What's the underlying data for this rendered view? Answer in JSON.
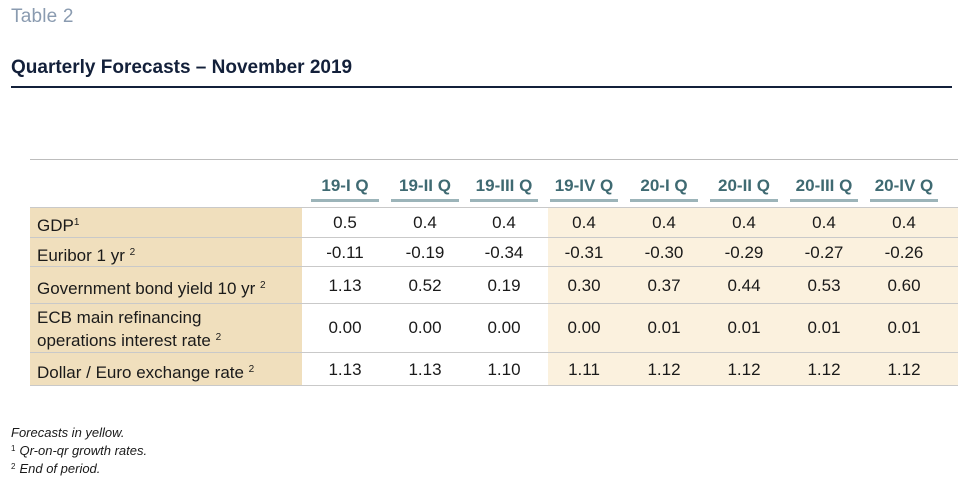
{
  "table_label": "Table 2",
  "title": "Quarterly Forecasts – November 2019",
  "columns": [
    "19-I Q",
    "19-II Q",
    "19-III Q",
    "19-IV Q",
    "20-I Q",
    "20-II Q",
    "20-III Q",
    "20-IV Q"
  ],
  "rows": [
    {
      "label": "GDP",
      "sup": "1",
      "values": [
        "0.5",
        "0.4",
        "0.4",
        "0.4",
        "0.4",
        "0.4",
        "0.4",
        "0.4"
      ]
    },
    {
      "label": "Euribor 1 yr ",
      "sup": "2",
      "values": [
        "-0.11",
        "-0.19",
        "-0.34",
        "-0.31",
        "-0.30",
        "-0.29",
        "-0.27",
        "-0.26"
      ]
    },
    {
      "label": "Government bond yield 10 yr ",
      "sup": "2",
      "values": [
        "1.13",
        "0.52",
        "0.19",
        "0.30",
        "0.37",
        "0.44",
        "0.53",
        "0.60"
      ]
    },
    {
      "label_line1": "ECB main refinancing",
      "label": "operations interest rate ",
      "sup": "2",
      "values": [
        "0.00",
        "0.00",
        "0.00",
        "0.00",
        "0.01",
        "0.01",
        "0.01",
        "0.01"
      ]
    },
    {
      "label": "Dollar / Euro exchange rate ",
      "sup": "2",
      "values": [
        "1.13",
        "1.13",
        "1.10",
        "1.11",
        "1.12",
        "1.12",
        "1.12",
        "1.12"
      ]
    }
  ],
  "footnotes": {
    "note_forecast": "Forecasts in yellow.",
    "note1_mark": "1",
    "note1_text": "Qr-on-qr growth rates.",
    "note2_mark": "2",
    "note2_text": "End of period."
  },
  "colors": {
    "label_bg": "#f0dfbd",
    "forecast_bg": "#fbf1de",
    "header_text": "#3f6a72",
    "title_rule": "#13203a"
  }
}
